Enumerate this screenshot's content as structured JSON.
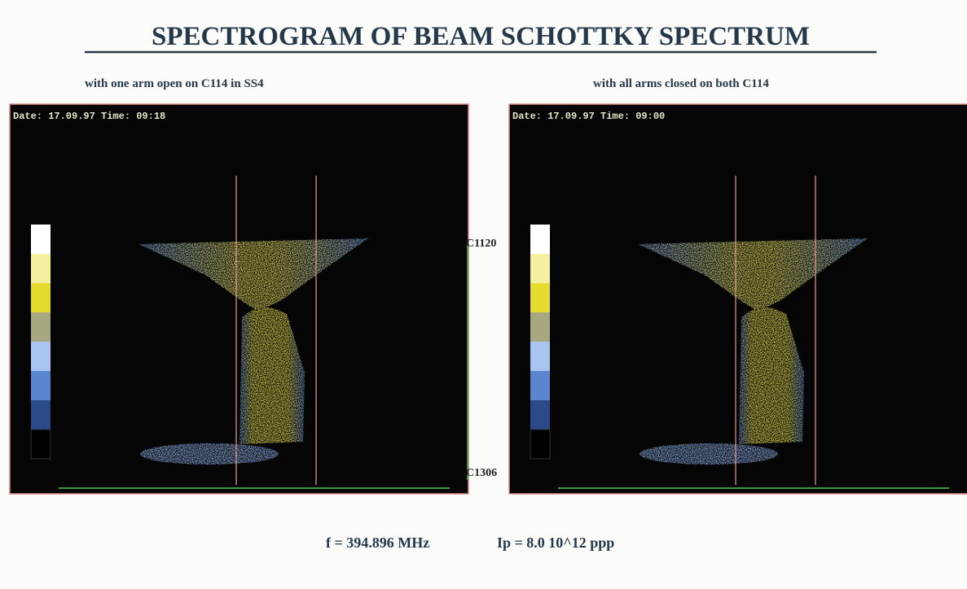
{
  "header": {
    "title": "SPECTROGRAM OF BEAM SCHOTTKY SPECTRUM"
  },
  "panels": [
    {
      "caption": "with one arm open on C114 in SS4",
      "timestamp": "Date: 17.09.97   Time: 09:18"
    },
    {
      "caption": "with all arms closed on both C114",
      "timestamp": "Date: 17.09.97   Time: 09:00"
    }
  ],
  "markers": {
    "top": "C1120",
    "bottom": "C1306"
  },
  "footer": {
    "frequency": "f = 394.896 MHz",
    "intensity": "Ip = 8.0 10^12 ppp"
  }
}
